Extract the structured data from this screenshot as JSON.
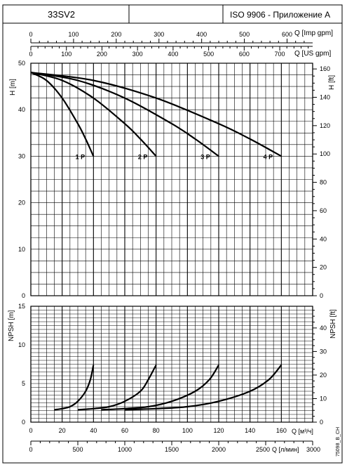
{
  "header": {
    "model": "33SV2",
    "standard": "ISO 9906 - Приложение A"
  },
  "axes": {
    "imp_gpm": {
      "label": "Q [Imp gpm]",
      "ticks": [
        0,
        100,
        200,
        300,
        400,
        500,
        600
      ]
    },
    "us_gpm": {
      "label": "Q [US gpm]",
      "ticks": [
        0,
        100,
        200,
        300,
        400,
        500,
        600,
        700
      ]
    },
    "head_m": {
      "label": "H [m]",
      "ticks": [
        0,
        10,
        20,
        30,
        40,
        50
      ]
    },
    "head_ft": {
      "label": "H [ft]",
      "ticks": [
        0,
        20,
        40,
        60,
        80,
        100,
        120,
        140,
        160
      ]
    },
    "npsh_m": {
      "label": "NPSH [m]",
      "ticks": [
        0,
        5,
        10,
        15
      ]
    },
    "npsh_ft": {
      "label": "NPSH [ft]",
      "ticks": [
        0,
        10,
        20,
        30,
        40
      ]
    },
    "flow_m3h": {
      "label": "Q [м³/ч]",
      "ticks": [
        0,
        20,
        40,
        60,
        80,
        100,
        120,
        140,
        160
      ]
    },
    "flow_lmin": {
      "label": "Q [л/мин]",
      "ticks": [
        0,
        500,
        1000,
        1500,
        2000,
        2500,
        3000
      ]
    }
  },
  "footnote": "75098_B_CH",
  "colors": {
    "line": "#000000",
    "grid": "#000000",
    "background": "#ffffff"
  },
  "chart_data": [
    {
      "type": "line",
      "title": "",
      "xlabel": "Q [м³/ч]",
      "ylabel": "H [m]",
      "xlim": [
        0,
        180
      ],
      "ylim": [
        0,
        50
      ],
      "grid": true,
      "series": [
        {
          "name": "1 P",
          "x": [
            0,
            10,
            20,
            30,
            35,
            40
          ],
          "y": [
            48,
            46.3,
            42.5,
            37,
            33.7,
            30
          ]
        },
        {
          "name": "2 P",
          "x": [
            0,
            20,
            40,
            60,
            70,
            80
          ],
          "y": [
            48,
            46.3,
            42.5,
            37,
            33.7,
            30
          ]
        },
        {
          "name": "3 P",
          "x": [
            0,
            30,
            60,
            90,
            105,
            120
          ],
          "y": [
            48,
            46.3,
            42.5,
            37,
            33.7,
            30
          ]
        },
        {
          "name": "4 P",
          "x": [
            0,
            40,
            80,
            120,
            140,
            160
          ],
          "y": [
            48,
            46.3,
            42.5,
            37,
            33.7,
            30
          ]
        }
      ]
    },
    {
      "type": "line",
      "title": "",
      "xlabel": "Q [м³/ч]",
      "ylabel": "NPSH [m]",
      "xlim": [
        0,
        180
      ],
      "ylim": [
        0,
        15
      ],
      "grid": true,
      "series": [
        {
          "x": [
            15,
            20,
            25,
            30,
            35,
            38,
            40
          ],
          "y": [
            1.6,
            1.75,
            2.0,
            2.7,
            4.0,
            5.5,
            7.4
          ]
        },
        {
          "x": [
            30,
            40,
            50,
            60,
            70,
            75,
            80
          ],
          "y": [
            1.6,
            1.75,
            2.0,
            2.7,
            4.0,
            5.5,
            7.4
          ]
        },
        {
          "x": [
            45,
            60,
            75,
            90,
            105,
            114,
            120
          ],
          "y": [
            1.6,
            1.75,
            2.0,
            2.7,
            4.0,
            5.5,
            7.4
          ]
        },
        {
          "x": [
            60,
            80,
            100,
            120,
            140,
            152,
            160
          ],
          "y": [
            1.6,
            1.75,
            2.0,
            2.7,
            4.0,
            5.5,
            7.4
          ]
        }
      ]
    }
  ]
}
